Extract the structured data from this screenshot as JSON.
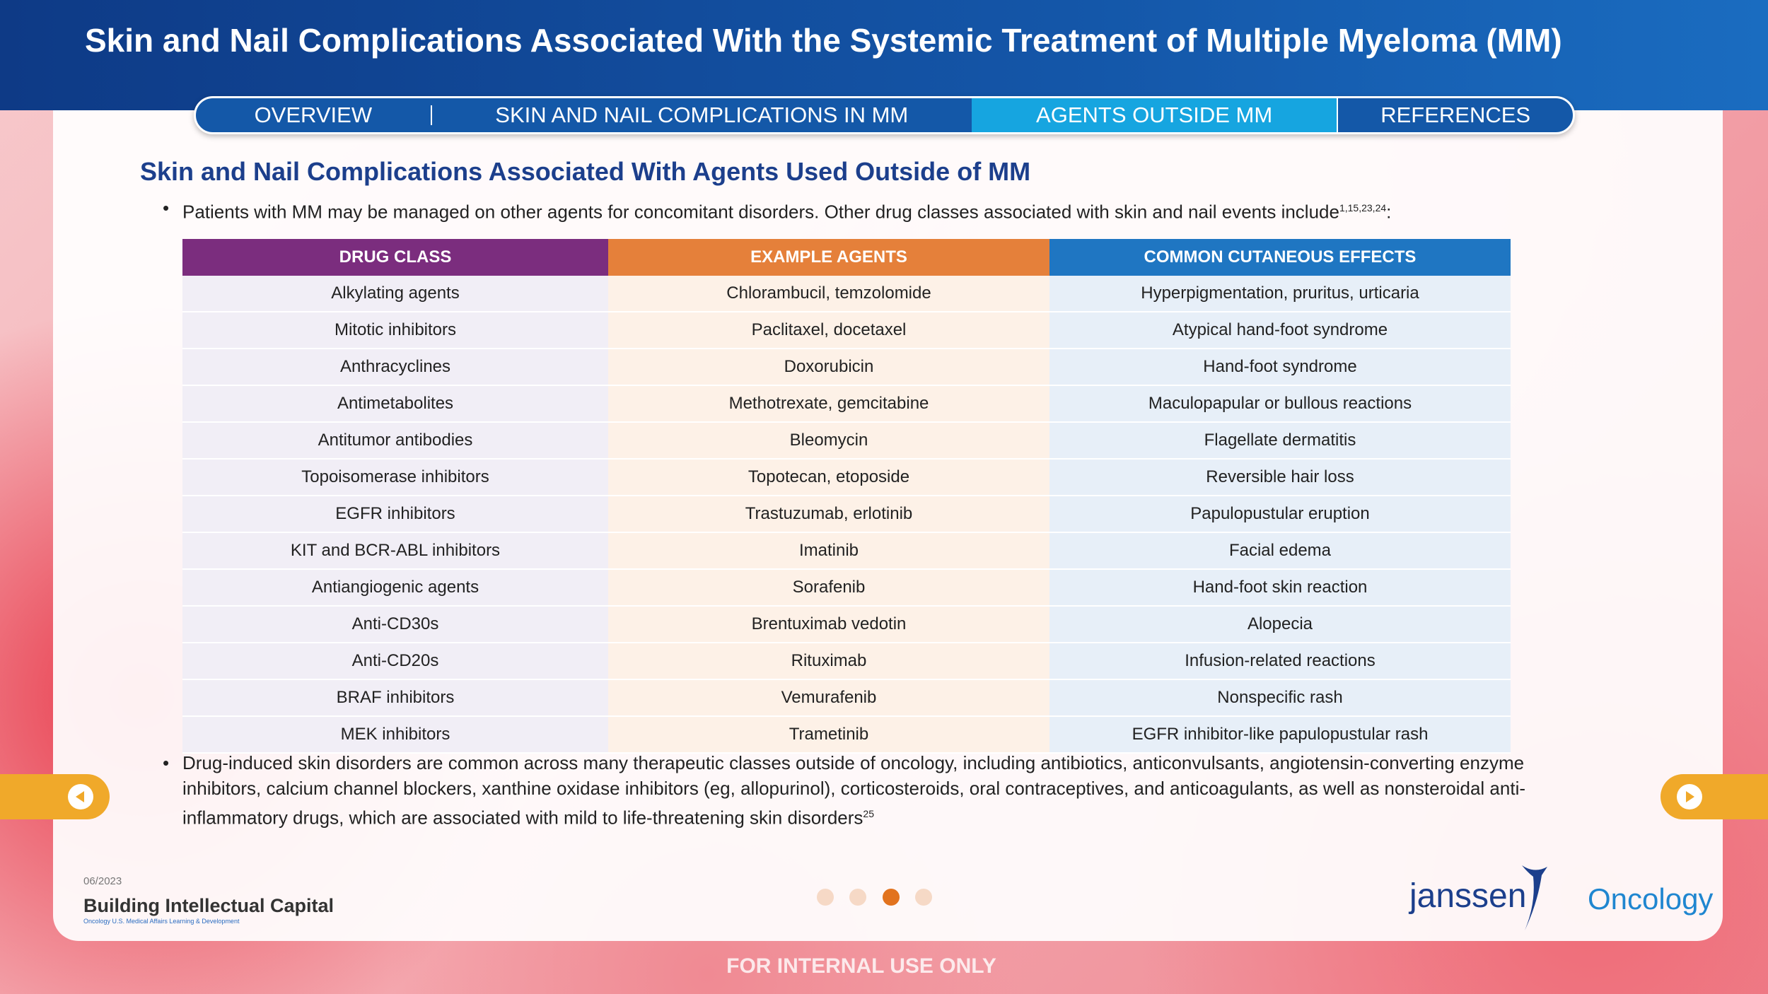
{
  "header": {
    "title": "Skin and Nail Complications Associated With the Systemic Treatment of Multiple Myeloma (MM)"
  },
  "nav": {
    "tabs": [
      "OVERVIEW",
      "SKIN AND NAIL COMPLICATIONS IN MM",
      "AGENTS OUTSIDE MM",
      "REFERENCES"
    ]
  },
  "content": {
    "heading": "Skin and Nail Complications Associated With Agents Used Outside of MM",
    "intro": "Patients with MM may be managed on other agents for concomitant disorders. Other drug classes associated with skin and nail events include",
    "intro_refs": "1,15,23,24",
    "intro_end": ":",
    "table": {
      "headers": [
        "DRUG CLASS",
        "EXAMPLE AGENTS",
        "COMMON CUTANEOUS EFFECTS"
      ],
      "rows": [
        [
          "Alkylating agents",
          "Chlorambucil, temzolomide",
          "Hyperpigmentation, pruritus, urticaria"
        ],
        [
          "Mitotic inhibitors",
          "Paclitaxel, docetaxel",
          "Atypical hand-foot syndrome"
        ],
        [
          "Anthracyclines",
          "Doxorubicin",
          "Hand-foot syndrome"
        ],
        [
          "Antimetabolites",
          "Methotrexate, gemcitabine",
          "Maculopapular or bullous reactions"
        ],
        [
          "Antitumor antibodies",
          "Bleomycin",
          "Flagellate dermatitis"
        ],
        [
          "Topoisomerase inhibitors",
          "Topotecan, etoposide",
          "Reversible hair loss"
        ],
        [
          "EGFR inhibitors",
          "Trastuzumab, erlotinib",
          "Papulopustular eruption"
        ],
        [
          "KIT and BCR-ABL inhibitors",
          "Imatinib",
          "Facial edema"
        ],
        [
          "Antiangiogenic agents",
          "Sorafenib",
          "Hand-foot skin reaction"
        ],
        [
          "Anti-CD30s",
          "Brentuximab vedotin",
          "Alopecia"
        ],
        [
          "Anti-CD20s",
          "Rituximab",
          "Infusion-related reactions"
        ],
        [
          "BRAF inhibitors",
          "Vemurafenib",
          "Nonspecific rash"
        ],
        [
          "MEK inhibitors",
          "Trametinib",
          "EGFR inhibitor-like papulopustular rash"
        ]
      ]
    },
    "note": "Drug-induced skin disorders are common across many therapeutic classes outside of oncology, including antibiotics, anticonvulsants, angiotensin-converting enzyme inhibitors, calcium channel blockers, xanthine oxidase inhibitors (eg, allopurinol), corticosteroids, oral contraceptives, and anticoagulants, as well as nonsteroidal anti-inflammatory drugs, which are associated with mild to life-threatening skin disorders",
    "note_ref": "25"
  },
  "footer": {
    "date": "06/2023",
    "brand": "Building Intellectual Capital",
    "brand_sub": "Oncology U.S. Medical Affairs Learning & Development",
    "logo_name": "janssen",
    "logo_unit": "Oncology",
    "notice": "FOR INTERNAL USE ONLY"
  }
}
